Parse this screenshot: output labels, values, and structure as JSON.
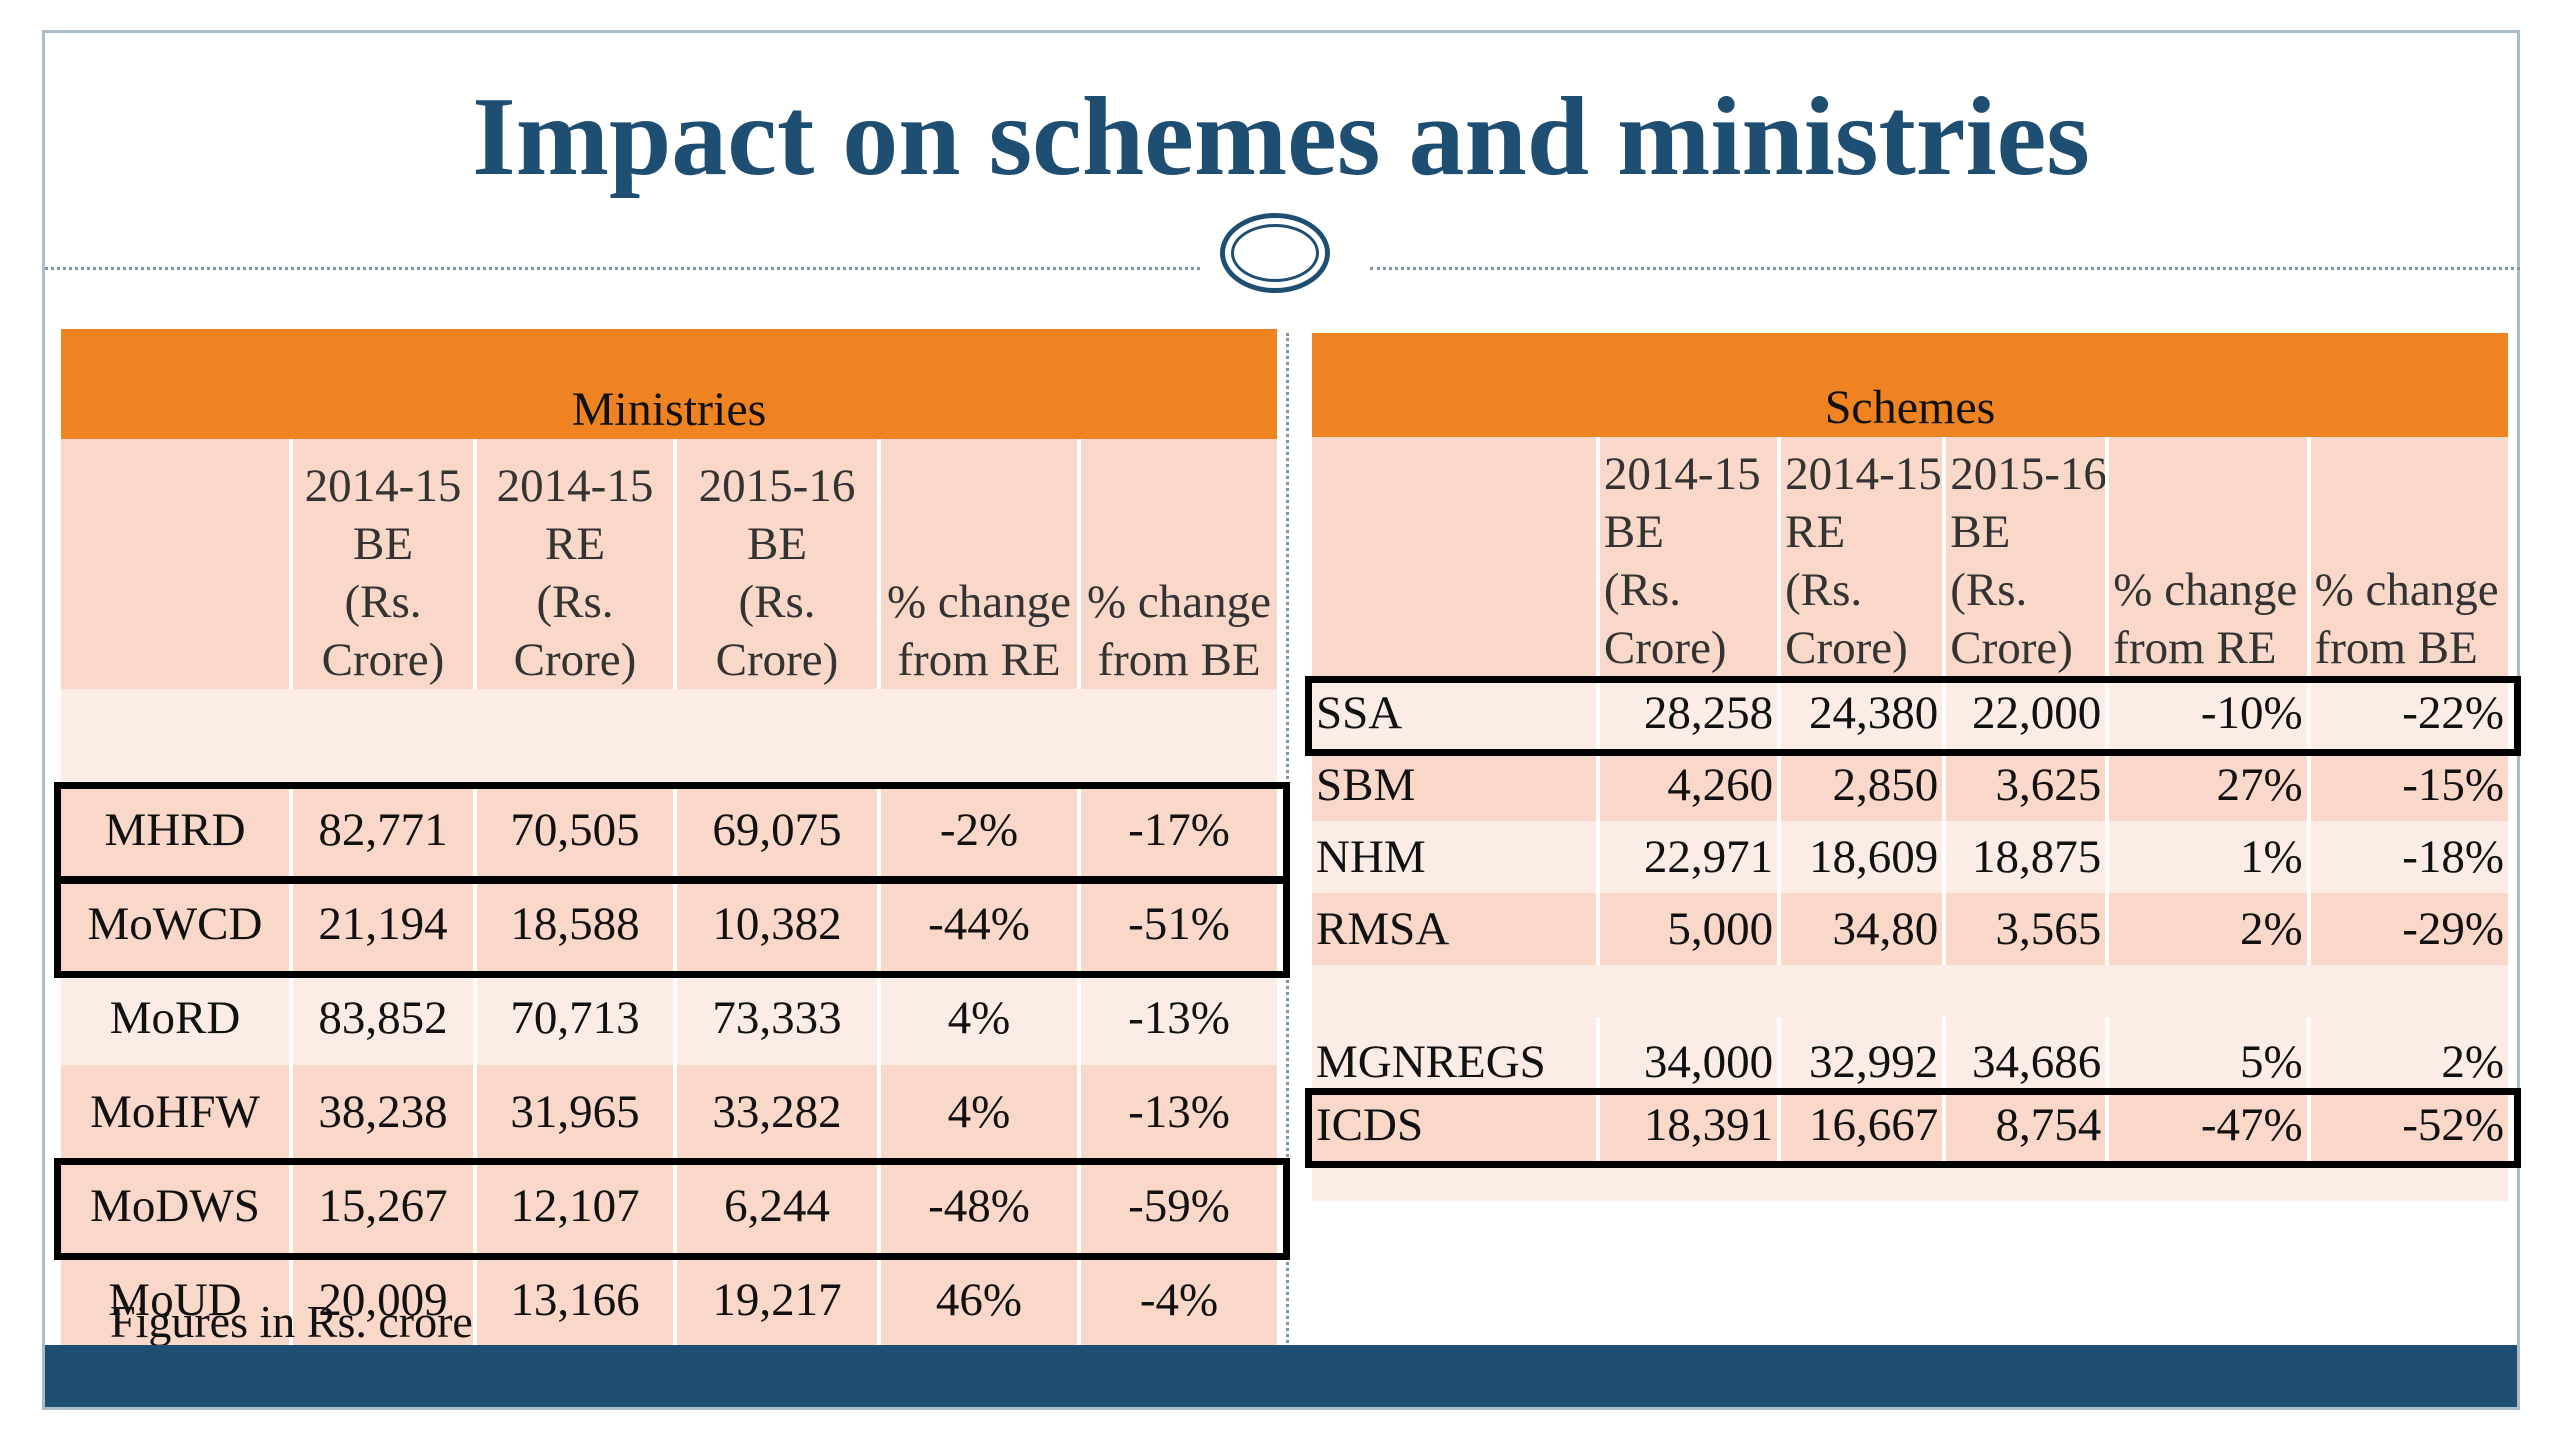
{
  "title": "Impact on schemes and ministries",
  "footnote": "Figures in Rs. crore",
  "ministries": {
    "header": "Ministries",
    "columns": [
      "",
      "2014-15 BE (Rs. Crore)",
      "2014-15 RE (Rs. Crore)",
      "2015-16 BE (Rs. Crore)",
      "% change from RE",
      "% change from BE"
    ],
    "col_lines": [
      [],
      [
        "2014-15",
        "BE",
        "(Rs.",
        "Crore)"
      ],
      [
        "2014-15",
        "RE",
        "(Rs.",
        "Crore)"
      ],
      [
        "2015-16",
        "BE",
        "(Rs.",
        "Crore)"
      ],
      [
        "% change",
        "from RE"
      ],
      [
        "% change",
        "from BE"
      ]
    ],
    "rows": [
      [
        "MHRD",
        "82,771",
        "70,505",
        "69,075",
        "-2%",
        "-17%"
      ],
      [
        "MoWCD",
        "21,194",
        "18,588",
        "10,382",
        "-44%",
        "-51%"
      ],
      [
        "MoRD",
        "83,852",
        "70,713",
        "73,333",
        "4%",
        "-13%"
      ],
      [
        "MoHFW",
        "38,238",
        "31,965",
        "33,282",
        "4%",
        "-13%"
      ],
      [
        "MoDWS",
        "15,267",
        "12,107",
        "6,244",
        "-48%",
        "-59%"
      ],
      [
        "MoUD",
        "20,009",
        "13,166",
        "19,217",
        "46%",
        "-4%"
      ]
    ],
    "highlighted": [
      "MHRD",
      "MoWCD",
      "MoDWS"
    ]
  },
  "schemes": {
    "header": "Schemes",
    "col_lines": [
      [],
      [
        "2014-15",
        "BE",
        "(Rs.",
        "Crore)"
      ],
      [
        "2014-15",
        "RE",
        "(Rs.",
        "Crore)"
      ],
      [
        "2015-16",
        "BE",
        "(Rs.",
        "Crore)"
      ],
      [
        "% change",
        "from  RE"
      ],
      [
        "% change",
        "from BE"
      ]
    ],
    "rows": [
      [
        "SSA",
        "28,258",
        "24,380",
        "22,000",
        "-10%",
        "-22%"
      ],
      [
        "SBM",
        "4,260",
        "2,850",
        "3,625",
        "27%",
        "-15%"
      ],
      [
        "NHM",
        "22,971",
        "18,609",
        "18,875",
        "1%",
        "-18%"
      ],
      [
        "RMSA",
        "5,000",
        "34,80",
        "3,565",
        "2%",
        "-29%"
      ],
      [
        "MGNREGS",
        "34,000",
        "32,992",
        "34,686",
        "5%",
        "2%"
      ],
      [
        "ICDS",
        "18,391",
        "16,667",
        "8,754",
        "-47%",
        "-52%"
      ]
    ],
    "highlighted": [
      "SSA",
      "ICDS"
    ]
  },
  "colors": {
    "title": "#1f4e73",
    "header_orange": "#f08321",
    "row_dark": "#f9d8c9",
    "row_light": "#fcece6",
    "footer_bar": "#1f4e73",
    "highlight_border": "#000000"
  }
}
